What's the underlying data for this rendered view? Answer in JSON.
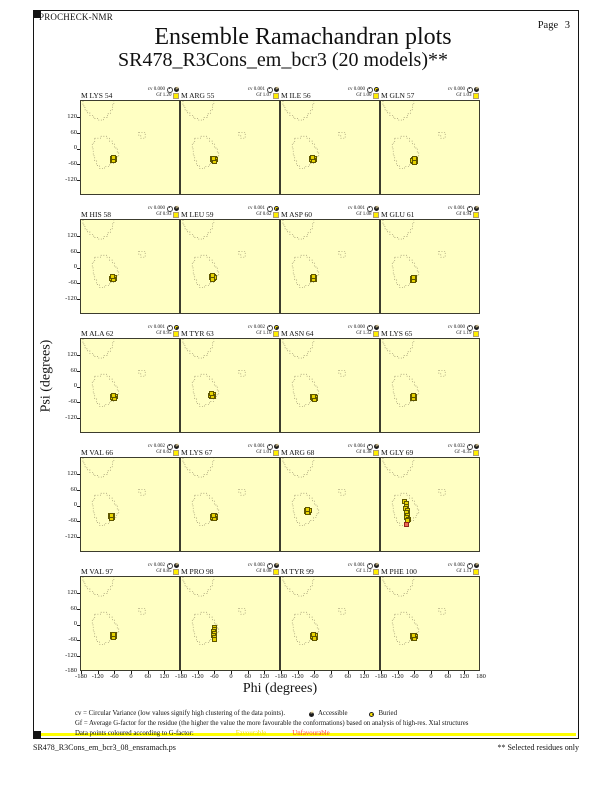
{
  "header": {
    "app": "PROCHECK-NMR",
    "page": "Page  3",
    "title": "Ensemble Ramachandran plots",
    "subtitle": "SR478_R3Cons_em_bcr3 (20 models)**"
  },
  "axes": {
    "x_label": "Phi (degrees)",
    "y_label": "Psi (degrees)",
    "x_ticks": [
      -180,
      -120,
      -60,
      0,
      60,
      120
    ],
    "x_end_tick": 180,
    "y_ticks": [
      120,
      60,
      0,
      -60,
      -120
    ],
    "y_end_tick": -180
  },
  "legend": {
    "line1": "cv = Circular Variance (low values signify high clustering of the data points).",
    "accessible_label": "Accessible",
    "buried_label": "Buried",
    "line2": "Gf = Average G-factor for the residue (the higher the value the more favourable the conformations) based on analysis of high-res. Xtal structures",
    "line3_prefix": "Data points coloured according to G-factor:",
    "favourable_label": "Favourable",
    "unfavourable_label": "Unfavourable"
  },
  "footer": {
    "filename": "SR478_R3Cons_em_bcr3_08_ensramach.ps",
    "note": "** Selected residues only"
  },
  "colors": {
    "plot_bg": "#ffffc3",
    "point_fill": "#e8d400",
    "point_border": "#5f5600",
    "red_point_fill": "#ef6a55",
    "favourable_text": "#efdf00",
    "unfavourable_text": "#ff3b30",
    "separator_bar": "#ffff00"
  },
  "chart_data": {
    "type": "scatter",
    "title": "Ensemble Ramachandran plots",
    "subtitle": "SR478_R3Cons_em_bcr3 (20 models)**",
    "xlabel": "Phi (degrees)",
    "ylabel": "Psi (degrees)",
    "xlim": [
      -180,
      180
    ],
    "ylim": [
      -180,
      180
    ],
    "grid": {
      "rows": 5,
      "cols": 4
    },
    "plots": [
      {
        "residue": "M LYS 54",
        "cv": "0.000",
        "gf": "1.20",
        "exposure": "accessible",
        "points": [
          [
            -63,
            -40
          ],
          [
            -67,
            -37
          ],
          [
            -59,
            -43
          ],
          [
            -65,
            -45
          ],
          [
            -60,
            -36
          ],
          [
            -68,
            -41
          ],
          [
            -58,
            -38
          ],
          [
            -62,
            -46
          ],
          [
            -64,
            -34
          ]
        ]
      },
      {
        "residue": "M ARG 55",
        "cv": "0.001",
        "gf": "1.07",
        "exposure": "accessible",
        "points": [
          [
            -62,
            -42
          ],
          [
            -66,
            -39
          ],
          [
            -58,
            -45
          ],
          [
            -64,
            -47
          ],
          [
            -59,
            -38
          ],
          [
            -67,
            -43
          ],
          [
            -57,
            -40
          ],
          [
            -61,
            -48
          ],
          [
            -63,
            -36
          ]
        ]
      },
      {
        "residue": "M ILE 56",
        "cv": "0.000",
        "gf": "1.00",
        "exposure": "buried",
        "points": [
          [
            -65,
            -40
          ],
          [
            -69,
            -37
          ],
          [
            -61,
            -43
          ],
          [
            -67,
            -45
          ],
          [
            -62,
            -36
          ],
          [
            -70,
            -41
          ],
          [
            -60,
            -38
          ],
          [
            -64,
            -46
          ],
          [
            -66,
            -34
          ]
        ]
      },
      {
        "residue": "M GLN 57",
        "cv": "0.000",
        "gf": "1.03",
        "exposure": "accessible",
        "points": [
          [
            -60,
            -45
          ],
          [
            -64,
            -42
          ],
          [
            -56,
            -48
          ],
          [
            -62,
            -50
          ],
          [
            -57,
            -41
          ],
          [
            -65,
            -46
          ],
          [
            -55,
            -43
          ],
          [
            -59,
            -51
          ],
          [
            -61,
            -39
          ]
        ]
      },
      {
        "residue": "M HIS 58",
        "cv": "0.000",
        "gf": "0.93",
        "exposure": "accessible",
        "points": [
          [
            -64,
            -40
          ],
          [
            -68,
            -37
          ],
          [
            -60,
            -43
          ],
          [
            -66,
            -45
          ],
          [
            -61,
            -36
          ],
          [
            -69,
            -41
          ],
          [
            -59,
            -38
          ],
          [
            -63,
            -46
          ],
          [
            -65,
            -34
          ]
        ]
      },
      {
        "residue": "M LEU 59",
        "cv": "0.001",
        "gf": "0.62",
        "exposure": "buried",
        "points": [
          [
            -66,
            -38
          ],
          [
            -70,
            -35
          ],
          [
            -62,
            -41
          ],
          [
            -68,
            -43
          ],
          [
            -63,
            -34
          ],
          [
            -71,
            -39
          ],
          [
            -61,
            -36
          ],
          [
            -65,
            -44
          ],
          [
            -67,
            -32
          ]
        ]
      },
      {
        "residue": "M ASP 60",
        "cv": "0.001",
        "gf": "1.08",
        "exposure": "accessible",
        "points": [
          [
            -63,
            -41
          ],
          [
            -67,
            -38
          ],
          [
            -59,
            -44
          ],
          [
            -65,
            -46
          ],
          [
            -60,
            -37
          ],
          [
            -68,
            -42
          ],
          [
            -58,
            -39
          ],
          [
            -62,
            -47
          ],
          [
            -64,
            -35
          ]
        ]
      },
      {
        "residue": "M GLU 61",
        "cv": "0.001",
        "gf": "0.94",
        "exposure": "accessible",
        "points": [
          [
            -63,
            -43
          ],
          [
            -67,
            -40
          ],
          [
            -59,
            -46
          ],
          [
            -65,
            -48
          ],
          [
            -60,
            -39
          ],
          [
            -68,
            -44
          ],
          [
            -58,
            -41
          ],
          [
            -62,
            -49
          ],
          [
            -64,
            -37
          ]
        ]
      },
      {
        "residue": "M ALA 62",
        "cv": "0.001",
        "gf": "0.95",
        "exposure": "buried",
        "points": [
          [
            -62,
            -40
          ],
          [
            -66,
            -37
          ],
          [
            -58,
            -43
          ],
          [
            -64,
            -45
          ],
          [
            -59,
            -36
          ],
          [
            -67,
            -41
          ],
          [
            -57,
            -38
          ],
          [
            -61,
            -46
          ],
          [
            -63,
            -34
          ]
        ]
      },
      {
        "residue": "M TYR 63",
        "cv": "0.002",
        "gf": "1.10",
        "exposure": "buried",
        "points": [
          [
            -68,
            -33
          ],
          [
            -72,
            -30
          ],
          [
            -64,
            -36
          ],
          [
            -70,
            -38
          ],
          [
            -65,
            -29
          ],
          [
            -73,
            -34
          ],
          [
            -63,
            -31
          ],
          [
            -67,
            -39
          ],
          [
            -69,
            -27
          ]
        ]
      },
      {
        "residue": "M ASN 64",
        "cv": "0.000",
        "gf": "1.32",
        "exposure": "accessible",
        "points": [
          [
            -61,
            -42
          ],
          [
            -65,
            -39
          ],
          [
            -57,
            -45
          ],
          [
            -63,
            -47
          ],
          [
            -58,
            -38
          ],
          [
            -66,
            -43
          ],
          [
            -56,
            -40
          ],
          [
            -60,
            -48
          ],
          [
            -62,
            -36
          ]
        ]
      },
      {
        "residue": "M LYS 65",
        "cv": "0.000",
        "gf": "1.19",
        "exposure": "accessible",
        "points": [
          [
            -63,
            -41
          ],
          [
            -67,
            -38
          ],
          [
            -59,
            -44
          ],
          [
            -65,
            -46
          ],
          [
            -60,
            -37
          ],
          [
            -68,
            -42
          ],
          [
            -58,
            -39
          ],
          [
            -62,
            -47
          ],
          [
            -64,
            -35
          ]
        ]
      },
      {
        "residue": "M VAL 66",
        "cv": "0.002",
        "gf": "0.62",
        "exposure": "accessible",
        "points": [
          [
            -70,
            -42
          ],
          [
            -74,
            -39
          ],
          [
            -66,
            -45
          ],
          [
            -72,
            -47
          ],
          [
            -67,
            -38
          ],
          [
            -75,
            -43
          ],
          [
            -65,
            -40
          ],
          [
            -69,
            -48
          ],
          [
            -71,
            -36
          ]
        ]
      },
      {
        "residue": "M LYS 67",
        "cv": "0.001",
        "gf": "1.01",
        "exposure": "accessible",
        "points": [
          [
            -61,
            -43
          ],
          [
            -65,
            -40
          ],
          [
            -57,
            -46
          ],
          [
            -63,
            -48
          ],
          [
            -58,
            -39
          ],
          [
            -66,
            -44
          ],
          [
            -56,
            -41
          ],
          [
            -60,
            -49
          ],
          [
            -62,
            -37
          ]
        ]
      },
      {
        "residue": "M ARG 68",
        "cv": "0.004",
        "gf": "0.38",
        "exposure": "accessible",
        "points": [
          [
            -84,
            -22
          ],
          [
            -88,
            -19
          ],
          [
            -80,
            -25
          ],
          [
            -86,
            -27
          ],
          [
            -81,
            -18
          ],
          [
            -89,
            -23
          ],
          [
            -79,
            -20
          ],
          [
            -83,
            -28
          ],
          [
            -85,
            -16
          ]
        ]
      },
      {
        "residue": "M GLY 69",
        "cv": "0.032",
        "gf": "-0.35",
        "exposure": "accessible",
        "points": [
          [
            -96,
            14
          ],
          [
            -90,
            6
          ],
          [
            -87,
            -2
          ],
          [
            -93,
            -12
          ],
          [
            -86,
            -20
          ],
          [
            -90,
            -28
          ],
          [
            -83,
            -36
          ],
          [
            -87,
            -44
          ],
          [
            -81,
            -52
          ],
          [
            -85,
            -58
          ]
        ],
        "red_points": [
          [
            -89,
            -73
          ]
        ]
      },
      {
        "residue": "M VAL 97",
        "cv": "0.002",
        "gf": "0.85",
        "exposure": "accessible",
        "points": [
          [
            -63,
            -42
          ],
          [
            -67,
            -39
          ],
          [
            -59,
            -45
          ],
          [
            -65,
            -47
          ],
          [
            -60,
            -38
          ],
          [
            -68,
            -43
          ],
          [
            -58,
            -40
          ],
          [
            -62,
            -48
          ],
          [
            -64,
            -36
          ]
        ]
      },
      {
        "residue": "M PRO 98",
        "cv": "0.003",
        "gf": "0.08",
        "exposure": "accessible",
        "points": [
          [
            -61,
            -10
          ],
          [
            -59,
            -18
          ],
          [
            -62,
            -26
          ],
          [
            -60,
            -34
          ],
          [
            -63,
            -42
          ],
          [
            -59,
            -50
          ],
          [
            -61,
            -58
          ]
        ]
      },
      {
        "residue": "M TYR 99",
        "cv": "0.001",
        "gf": "1.12",
        "exposure": "accessible",
        "points": [
          [
            -61,
            -45
          ],
          [
            -65,
            -42
          ],
          [
            -57,
            -48
          ],
          [
            -63,
            -50
          ],
          [
            -58,
            -41
          ],
          [
            -66,
            -46
          ],
          [
            -56,
            -43
          ],
          [
            -60,
            -51
          ],
          [
            -62,
            -39
          ]
        ]
      },
      {
        "residue": "M PHE 100",
        "cv": "0.002",
        "gf": "1.11",
        "exposure": "accessible",
        "points": [
          [
            -62,
            -46
          ],
          [
            -66,
            -43
          ],
          [
            -58,
            -49
          ],
          [
            -64,
            -51
          ],
          [
            -59,
            -42
          ],
          [
            -67,
            -47
          ],
          [
            -57,
            -44
          ],
          [
            -61,
            -52
          ],
          [
            -63,
            -40
          ]
        ]
      }
    ]
  }
}
